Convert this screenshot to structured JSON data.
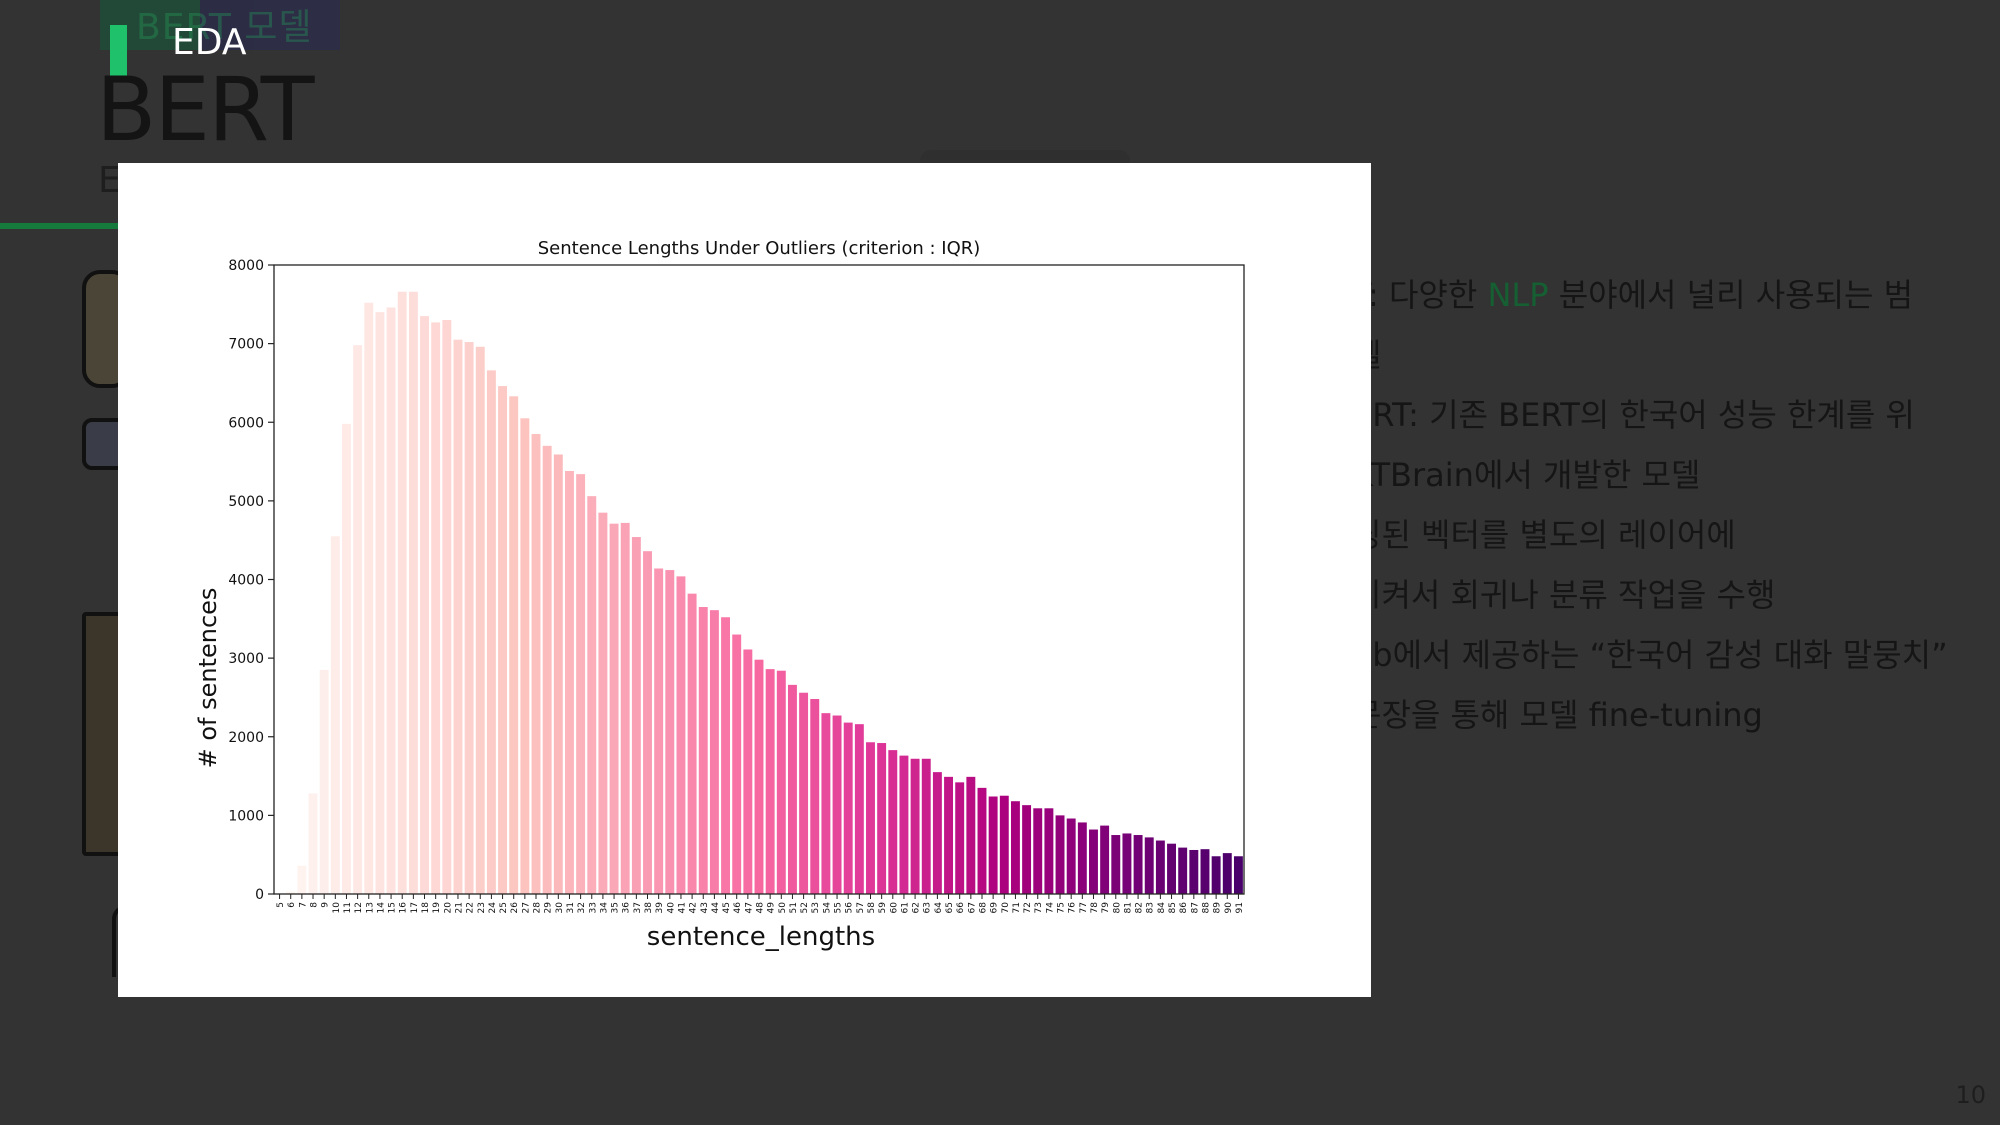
{
  "slide": {
    "ghost_title": "BERT 모델",
    "section_label": "EDA",
    "main_title": "BERT",
    "sub_peek": "E",
    "page_number": "10",
    "colors": {
      "accent": "#1fc16b",
      "dark_green": "#157a3c",
      "background": "#333333"
    }
  },
  "bullets": [
    {
      "before": "T: 다양한 ",
      "highlight": "NLP",
      "after": " 분야에서 널리 사용되는 범"
    },
    {
      "before": "델",
      "highlight": "",
      "after": ""
    },
    {
      "before": "ERT: 기존 BERT의 한국어 성능 한계를 위",
      "highlight": "",
      "after": ""
    },
    {
      "before": "KTBrain에서 개발한 모델",
      "highlight": "",
      "after": ""
    },
    {
      "before": "딩된 벡터를 별도의 레이어에",
      "highlight": "",
      "after": ""
    },
    {
      "before": "시켜서 회귀나 분류 작업을 수행",
      "highlight": "",
      "after": ""
    },
    {
      "before": "ub에서 제공하는 “한국어 감성 대화 말뭉치”",
      "highlight": "",
      "after": ""
    },
    {
      "before": " 문장을 통해 모델 fine-tuning",
      "highlight": "",
      "after": ""
    }
  ],
  "chart_data": {
    "type": "bar",
    "title": "Sentence Lengths Under Outliers (criterion : IQR)",
    "xlabel": "sentence_lengths",
    "ylabel": "# of sentences",
    "ylim": [
      0,
      8000
    ],
    "yticks": [
      0,
      1000,
      2000,
      3000,
      4000,
      5000,
      6000,
      7000,
      8000
    ],
    "color_map": "RdPu",
    "grid": false,
    "categories": [
      "5",
      "6",
      "7",
      "8",
      "9",
      "10",
      "11",
      "12",
      "13",
      "14",
      "15",
      "16",
      "17",
      "18",
      "19",
      "20",
      "21",
      "22",
      "23",
      "24",
      "25",
      "26",
      "27",
      "28",
      "29",
      "30",
      "31",
      "32",
      "33",
      "34",
      "35",
      "36",
      "37",
      "38",
      "39",
      "40",
      "41",
      "42",
      "43",
      "44",
      "45",
      "46",
      "47",
      "48",
      "49",
      "50",
      "51",
      "52",
      "53",
      "54",
      "55",
      "56",
      "57",
      "58",
      "59",
      "60",
      "61",
      "62",
      "63",
      "64",
      "65",
      "66",
      "67",
      "68",
      "69",
      "70",
      "71",
      "72",
      "73",
      "74",
      "75",
      "76",
      "77",
      "78",
      "79",
      "80",
      "81",
      "82",
      "83",
      "84",
      "85",
      "86",
      "87",
      "88",
      "89",
      "90",
      "91"
    ],
    "values": [
      5,
      30,
      360,
      1280,
      2850,
      4550,
      5980,
      6980,
      7520,
      7400,
      7460,
      7660,
      7660,
      7350,
      7270,
      7300,
      7050,
      7020,
      6960,
      6660,
      6460,
      6330,
      6050,
      5850,
      5700,
      5590,
      5380,
      5340,
      5060,
      4850,
      4710,
      4720,
      4540,
      4360,
      4140,
      4120,
      4040,
      3820,
      3650,
      3610,
      3520,
      3300,
      3110,
      2980,
      2860,
      2840,
      2660,
      2560,
      2480,
      2300,
      2270,
      2180,
      2160,
      1930,
      1920,
      1830,
      1760,
      1720,
      1720,
      1550,
      1490,
      1420,
      1490,
      1350,
      1240,
      1250,
      1180,
      1130,
      1090,
      1090,
      1000,
      960,
      910,
      820,
      870,
      750,
      770,
      750,
      720,
      680,
      640,
      590,
      560,
      570,
      480,
      520,
      480
    ]
  }
}
